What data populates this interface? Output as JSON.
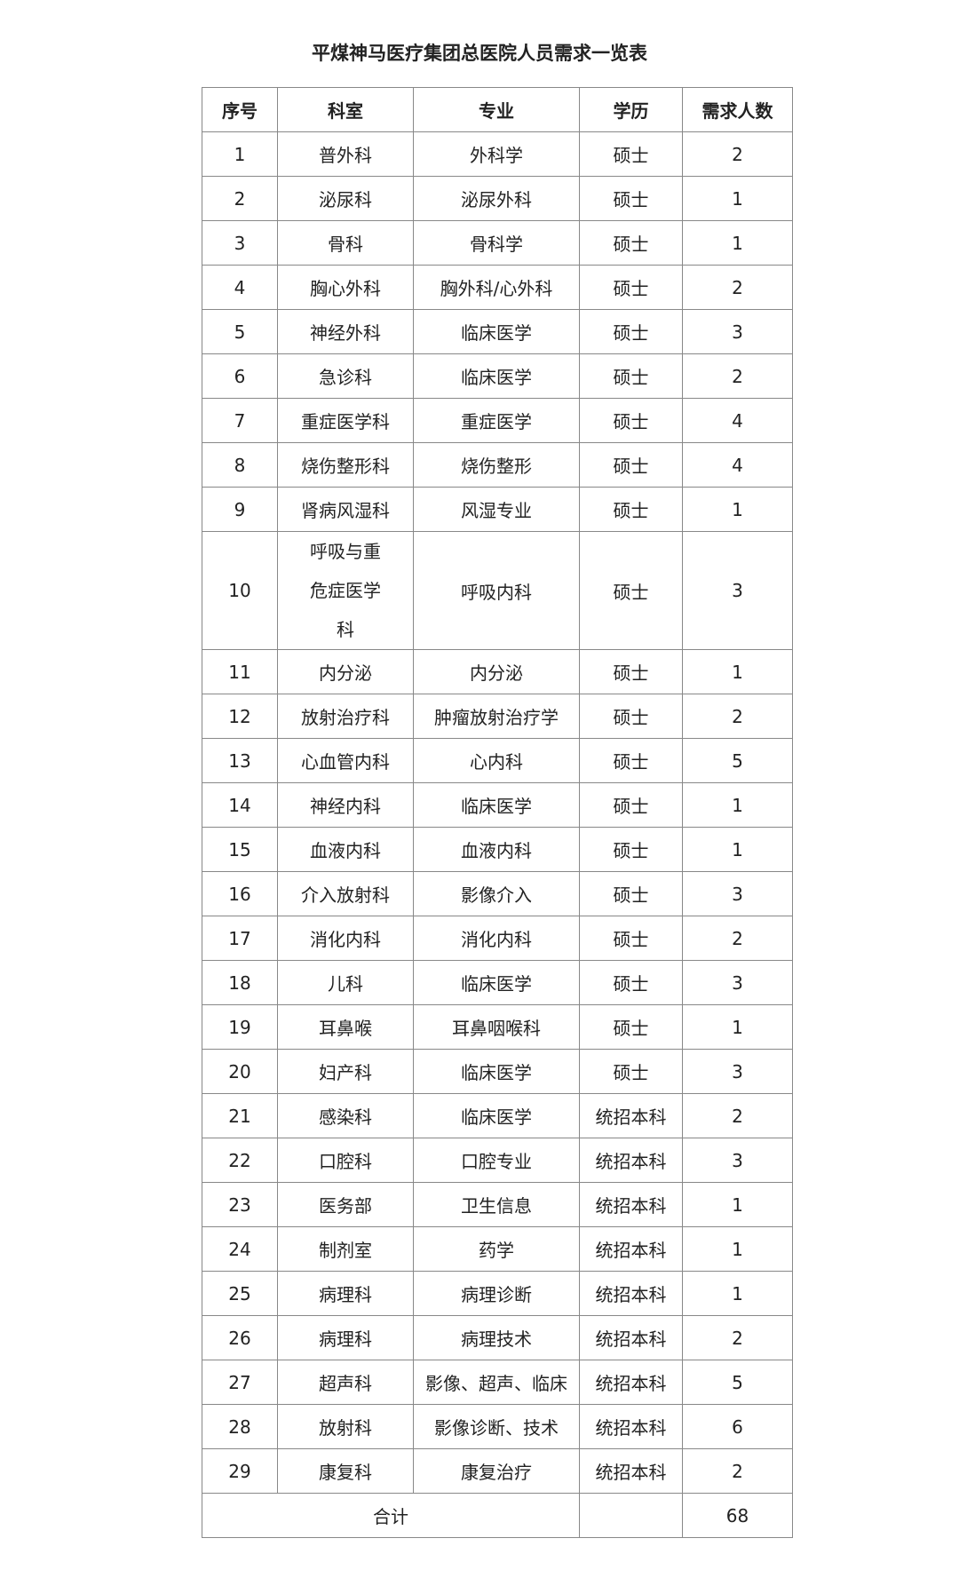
{
  "title": "平煤神马医疗集团总医院人员需求一览表",
  "headers": [
    "序号",
    "科室",
    "专业",
    "学历",
    "需求人数"
  ],
  "rows": [
    [
      "1",
      "普外科",
      "外科学",
      "硕士",
      "2"
    ],
    [
      "2",
      "泌尿科",
      "泌尿外科",
      "硕士",
      "1"
    ],
    [
      "3",
      "骨科",
      "骨科学",
      "硕士",
      "1"
    ],
    [
      "4",
      "胸心外科",
      "胸外科/心外科",
      "硕士",
      "2"
    ],
    [
      "5",
      "神经外科",
      "临床医学",
      "硕士",
      "3"
    ],
    [
      "6",
      "急诊科",
      "临床医学",
      "硕士",
      "2"
    ],
    [
      "7",
      "重症医学科",
      "重症医学",
      "硕士",
      "4"
    ],
    [
      "8",
      "烧伤整形科",
      "烧伤整形",
      "硕士",
      "4"
    ],
    [
      "9",
      "肾病风湿科",
      "风湿专业",
      "硕士",
      "1"
    ],
    [
      "10",
      "呼吸与重危症医学科",
      "呼吸内科",
      "硕士",
      "3"
    ],
    [
      "11",
      "内分泌",
      "内分泌",
      "硕士",
      "1"
    ],
    [
      "12",
      "放射治疗科",
      "肿瘤放射治疗学",
      "硕士",
      "2"
    ],
    [
      "13",
      "心血管内科",
      "心内科",
      "硕士",
      "5"
    ],
    [
      "14",
      "神经内科",
      "临床医学",
      "硕士",
      "1"
    ],
    [
      "15",
      "血液内科",
      "血液内科",
      "硕士",
      "1"
    ],
    [
      "16",
      "介入放射科",
      "影像介入",
      "硕士",
      "3"
    ],
    [
      "17",
      "消化内科",
      "消化内科",
      "硕士",
      "2"
    ],
    [
      "18",
      "儿科",
      "临床医学",
      "硕士",
      "3"
    ],
    [
      "19",
      "耳鼻喉",
      "耳鼻咽喉科",
      "硕士",
      "1"
    ],
    [
      "20",
      "妇产科",
      "临床医学",
      "硕士",
      "3"
    ],
    [
      "21",
      "感染科",
      "临床医学",
      "统招本科",
      "2"
    ],
    [
      "22",
      "口腔科",
      "口腔专业",
      "统招本科",
      "3"
    ],
    [
      "23",
      "医务部",
      "卫生信息",
      "统招本科",
      "1"
    ],
    [
      "24",
      "制剂室",
      "药学",
      "统招本科",
      "1"
    ],
    [
      "25",
      "病理科",
      "病理诊断",
      "统招本科",
      "1"
    ],
    [
      "26",
      "病理科",
      "病理技术",
      "统招本科",
      "2"
    ],
    [
      "27",
      "超声科",
      "影像、超声、临床",
      "统招本科",
      "5"
    ],
    [
      "28",
      "放射科",
      "影像诊断、技术",
      "统招本科",
      "6"
    ],
    [
      "29",
      "康复科",
      "康复治疗",
      "统招本科",
      "2"
    ]
  ],
  "total": {
    "label": "合计",
    "education": "",
    "count": "68"
  }
}
